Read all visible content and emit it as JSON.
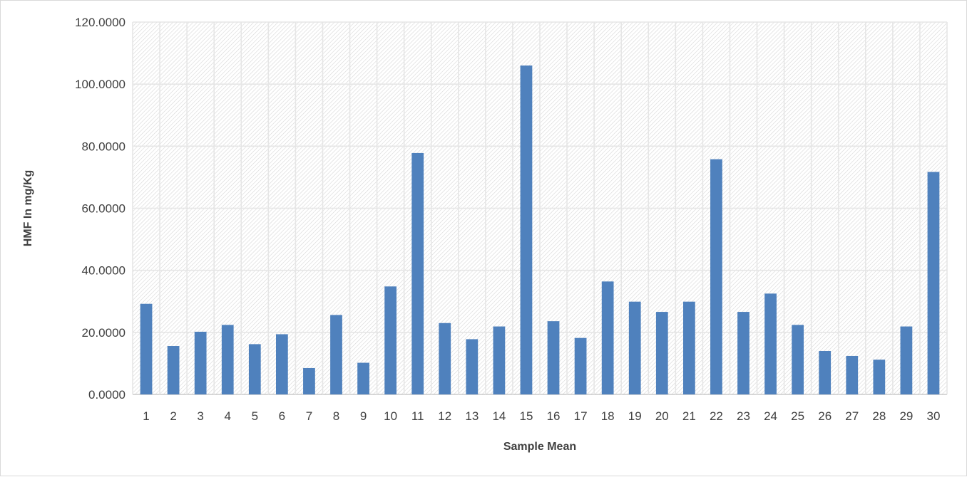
{
  "chart_data": {
    "type": "bar",
    "title": "",
    "xlabel": "Sample Mean",
    "ylabel": "HMF In mg/Kg",
    "categories": [
      "1",
      "2",
      "3",
      "4",
      "5",
      "6",
      "7",
      "8",
      "9",
      "10",
      "11",
      "12",
      "13",
      "14",
      "15",
      "16",
      "17",
      "18",
      "19",
      "20",
      "21",
      "22",
      "23",
      "24",
      "25",
      "26",
      "27",
      "28",
      "29",
      "30"
    ],
    "values": [
      29.2,
      15.6,
      20.2,
      22.4,
      16.2,
      19.4,
      8.5,
      25.6,
      10.2,
      34.8,
      77.8,
      23.0,
      17.8,
      21.9,
      106.0,
      23.6,
      18.2,
      36.4,
      29.9,
      26.6,
      29.9,
      75.8,
      26.6,
      32.5,
      22.4,
      14.0,
      12.4,
      11.2,
      21.9,
      71.7
    ],
    "y_ticks": [
      "0.0000",
      "20.0000",
      "40.0000",
      "60.0000",
      "80.0000",
      "100.0000",
      "120.0000"
    ],
    "ylim": [
      0,
      120
    ],
    "grid": true,
    "bar_color": "#4f81bd",
    "plot_pattern": "diagonal-hatch"
  }
}
